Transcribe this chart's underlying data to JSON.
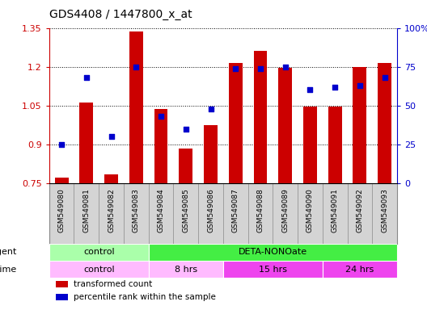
{
  "title": "GDS4408 / 1447800_x_at",
  "samples": [
    "GSM549080",
    "GSM549081",
    "GSM549082",
    "GSM549083",
    "GSM549084",
    "GSM549085",
    "GSM549086",
    "GSM549087",
    "GSM549088",
    "GSM549089",
    "GSM549090",
    "GSM549091",
    "GSM549092",
    "GSM549093"
  ],
  "bar_values": [
    0.77,
    1.06,
    0.785,
    1.335,
    1.035,
    0.885,
    0.975,
    1.215,
    1.26,
    1.195,
    1.045,
    1.045,
    1.2,
    1.215
  ],
  "dot_values": [
    25,
    68,
    30,
    75,
    43,
    35,
    48,
    74,
    74,
    75,
    60,
    62,
    63,
    68
  ],
  "bar_color": "#cc0000",
  "dot_color": "#0000cc",
  "ylim_left": [
    0.75,
    1.35
  ],
  "ylim_right": [
    0,
    100
  ],
  "yticks_left": [
    0.75,
    0.9,
    1.05,
    1.2,
    1.35
  ],
  "yticks_right": [
    0,
    25,
    50,
    75,
    100
  ],
  "ytick_labels_right": [
    "0",
    "25",
    "50",
    "75",
    "100%"
  ],
  "baseline": 0.75,
  "agent_row": [
    {
      "label": "control",
      "start": 0,
      "end": 4,
      "color": "#aaffaa"
    },
    {
      "label": "DETA-NONOate",
      "start": 4,
      "end": 14,
      "color": "#44ee44"
    }
  ],
  "time_row": [
    {
      "label": "control",
      "start": 0,
      "end": 4,
      "color": "#ffbbff"
    },
    {
      "label": "8 hrs",
      "start": 4,
      "end": 7,
      "color": "#ffbbff"
    },
    {
      "label": "15 hrs",
      "start": 7,
      "end": 11,
      "color": "#ee44ee"
    },
    {
      "label": "24 hrs",
      "start": 11,
      "end": 14,
      "color": "#ee44ee"
    }
  ],
  "legend_items": [
    {
      "color": "#cc0000",
      "label": "transformed count"
    },
    {
      "color": "#0000cc",
      "label": "percentile rank within the sample"
    }
  ],
  "tick_bg_color": "#d4d4d4",
  "border_color": "#888888"
}
